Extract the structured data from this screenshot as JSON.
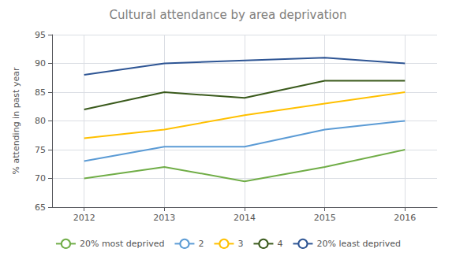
{
  "chart_data": {
    "type": "line",
    "title": "Cultural attendance by area deprivation",
    "ylabel": "% attending in past year",
    "x": [
      2012,
      2013,
      2014,
      2015,
      2016
    ],
    "xlim": [
      2011.6,
      2016.4
    ],
    "xticks": [
      2012,
      2013,
      2014,
      2015,
      2016
    ],
    "ylim": [
      65,
      95
    ],
    "yticks": [
      65,
      70,
      75,
      80,
      85,
      90,
      95
    ],
    "grid": true,
    "legend": "bottom",
    "series": [
      {
        "name": "20% most deprived",
        "color": "#70ad47",
        "values": [
          70.0,
          72.0,
          69.5,
          72.0,
          75.0
        ]
      },
      {
        "name": "2",
        "color": "#5b9bd5",
        "values": [
          73.0,
          75.5,
          75.5,
          78.5,
          80.0
        ]
      },
      {
        "name": "3",
        "color": "#ffc000",
        "values": [
          77.0,
          78.5,
          81.0,
          83.0,
          85.0
        ]
      },
      {
        "name": "4",
        "color": "#3a5a1c",
        "values": [
          82.0,
          85.0,
          84.0,
          87.0,
          87.0
        ]
      },
      {
        "name": "20% least deprived",
        "color": "#2e5594",
        "values": [
          88.0,
          90.0,
          90.5,
          91.0,
          90.0
        ]
      }
    ]
  }
}
